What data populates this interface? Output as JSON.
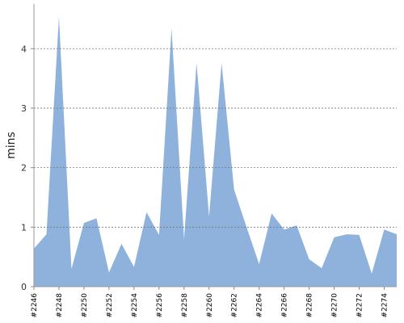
{
  "chart_data": {
    "type": "area",
    "y_label": "mins",
    "categories": [
      "#2246",
      null,
      "#2248",
      null,
      "#2250",
      null,
      "#2252",
      null,
      "#2254",
      null,
      "#2256",
      null,
      "#2258",
      null,
      "#2260",
      null,
      "#2262",
      null,
      "#2264",
      null,
      "#2266",
      null,
      "#2268",
      null,
      "#2270",
      null,
      "#2272",
      null,
      "#2274",
      null
    ],
    "values": [
      0.64,
      0.88,
      4.54,
      0.3,
      1.07,
      1.15,
      0.24,
      0.72,
      0.33,
      1.25,
      0.87,
      4.34,
      0.8,
      3.76,
      1.18,
      3.76,
      1.63,
      1.0,
      0.38,
      1.23,
      0.96,
      1.03,
      0.46,
      0.31,
      0.83,
      0.88,
      0.87,
      0.22,
      0.96,
      0.88
    ],
    "color": "#8fb2dc",
    "ylim": [
      0,
      4.75
    ],
    "yticks": [
      0,
      1,
      2,
      3,
      4
    ],
    "grid": true
  }
}
